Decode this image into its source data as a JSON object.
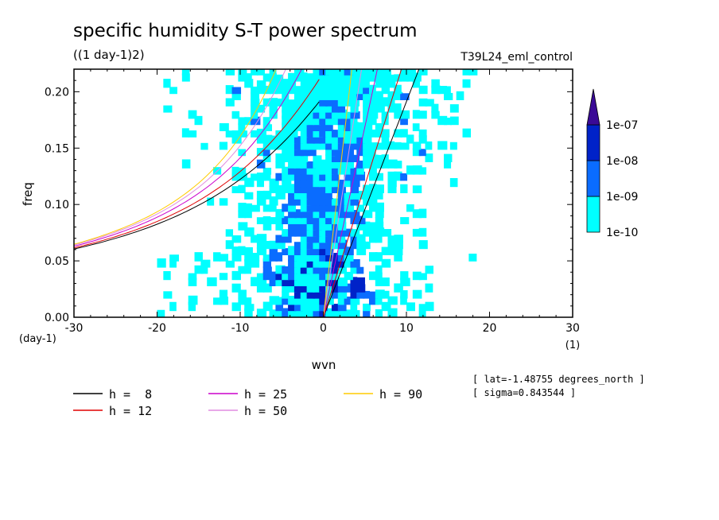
{
  "title": "specific humidity S-T power spectrum",
  "units": "((1 day-1)2)",
  "experiment": "T39L24_eml_control",
  "meta": [
    "[ lat=-1.48755 degrees_north ]",
    "[ sigma=0.843544 ]"
  ],
  "colors": {
    "shade": [
      "#00ffff",
      "#0a6cff",
      "#0022c8",
      "#3a0a96"
    ],
    "h8": "#000000",
    "h12": "#e00000",
    "h25": "#cc00cc",
    "h50": "#e08ce0",
    "h90": "#ffcc00"
  },
  "chart_data": {
    "type": "contour",
    "xlabel": "wvn",
    "xunit_label": "(1)",
    "ylabel": "freq",
    "yunit_label": "(day-1)",
    "xlim": [
      -30,
      30
    ],
    "ylim": [
      0,
      0.22
    ],
    "xticks": [
      "-30",
      "-20",
      "-10",
      "0",
      "10",
      "20",
      "30"
    ],
    "yticks": [
      "0.00",
      "0.05",
      "0.10",
      "0.15",
      "0.20"
    ],
    "colorbar": {
      "levels": [
        "1e-10",
        "1e-09",
        "1e-08",
        "1e-07"
      ],
      "colors": [
        "#00ffff",
        "#0a6cff",
        "#0022c8",
        "#3a0a96"
      ]
    },
    "series": [
      {
        "name": "h =  8",
        "key": "h8"
      },
      {
        "name": "h = 12",
        "key": "h12"
      },
      {
        "name": "h = 25",
        "key": "h25"
      },
      {
        "name": "h = 50",
        "key": "h50"
      },
      {
        "name": "h = 90",
        "key": "h90"
      }
    ]
  }
}
